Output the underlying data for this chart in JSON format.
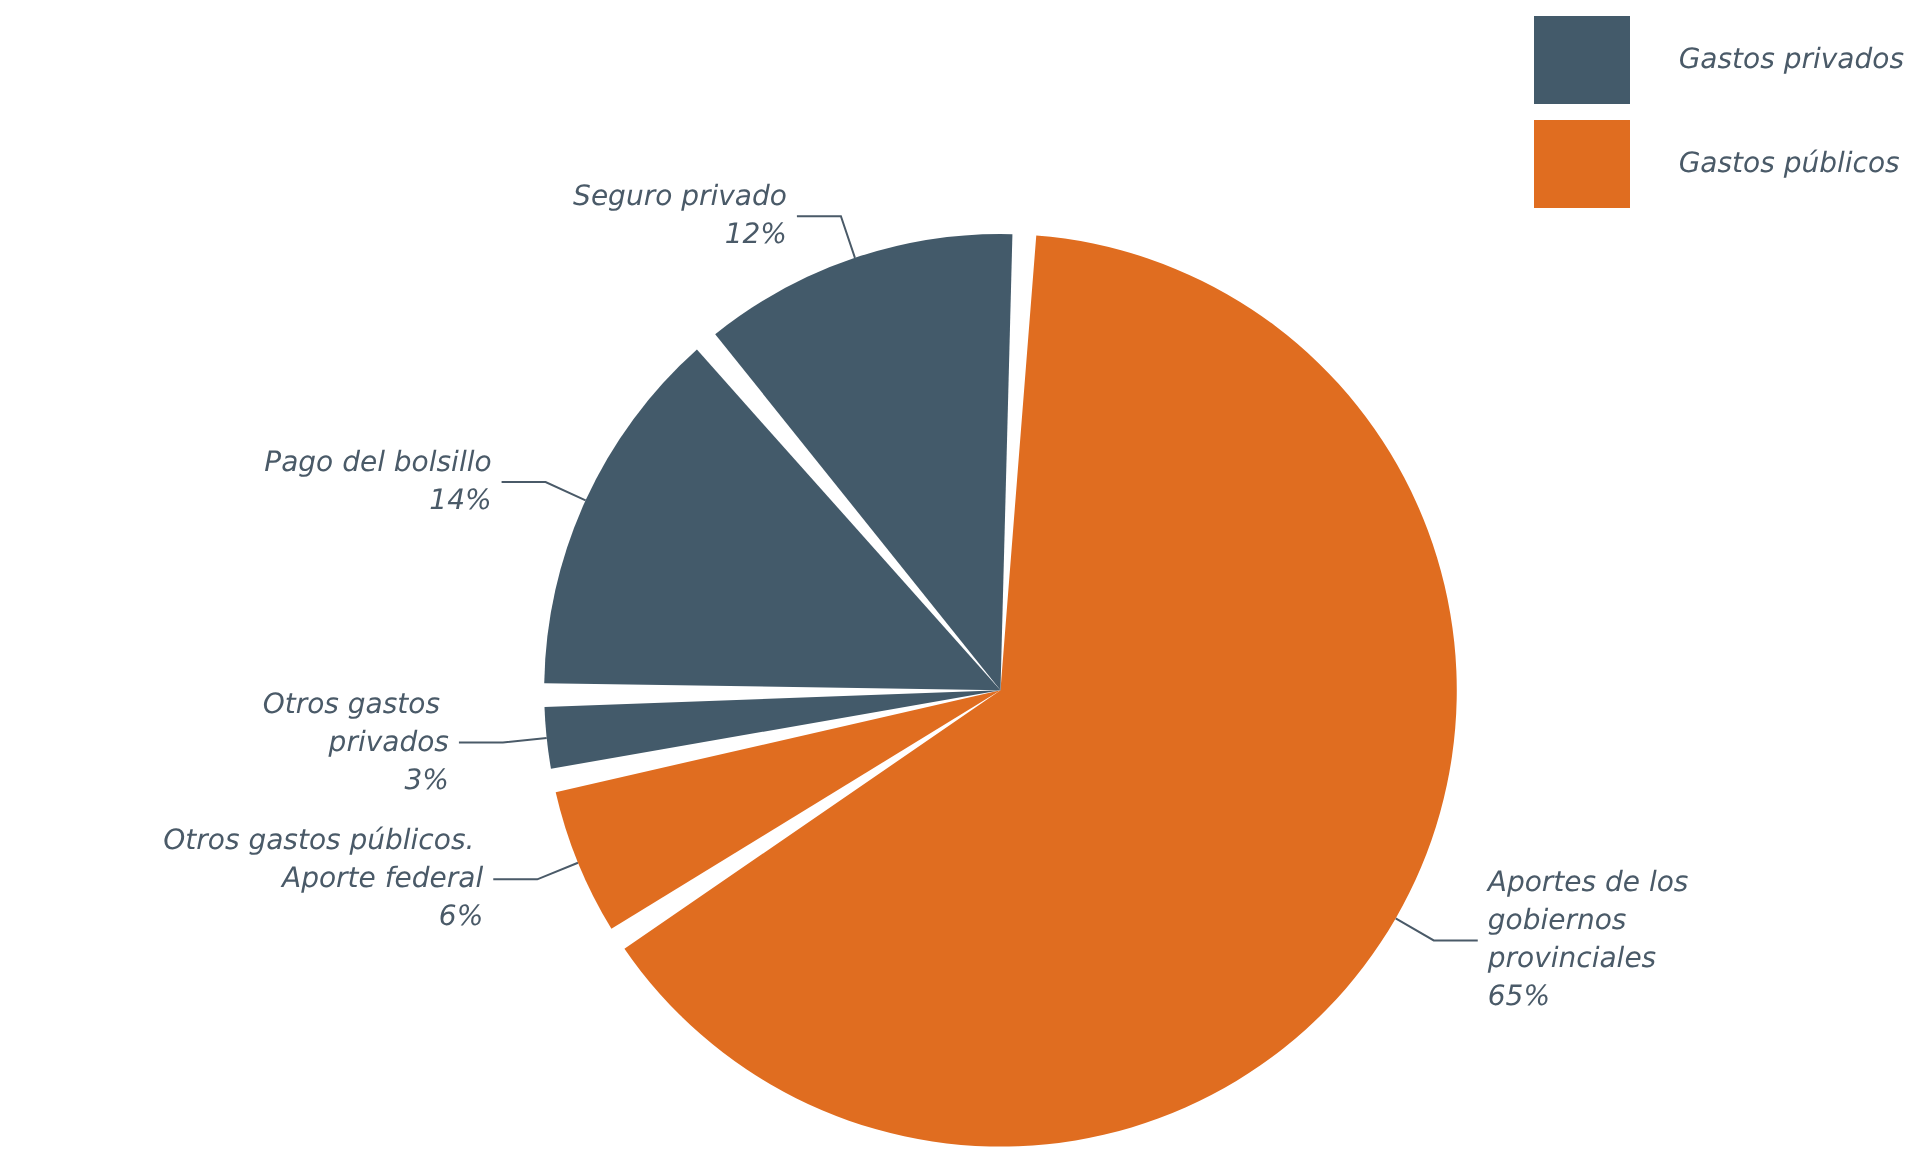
{
  "chart_data": {
    "type": "pie",
    "categories": [
      "Aportes de los gobiernos provinciales",
      "Otros gastos públicos. Aporte federal",
      "Otros gastos privados",
      "Pago del bolsillo",
      "Seguro privado"
    ],
    "values": [
      65,
      6,
      3,
      14,
      12
    ],
    "colors": [
      "#e06d20",
      "#e06d20",
      "#435a6a",
      "#435a6a",
      "#435a6a"
    ],
    "value_labels": [
      "65%",
      "6%",
      "3%",
      "14%",
      "12%"
    ],
    "annotations": [
      "Gastos privados",
      "Gastos públicos"
    ]
  }
}
